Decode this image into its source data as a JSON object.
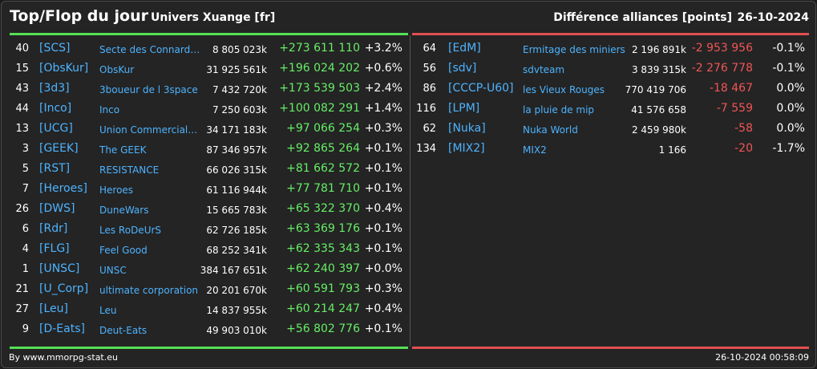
{
  "header": {
    "title": "Top/Flop du jour",
    "universe": "Univers Xuange [fr]",
    "subtitle": "Différence alliances [points]",
    "date": "26-10-2024"
  },
  "colors": {
    "up": "#66ee66",
    "down": "#f05555",
    "tag": "#4db3ff"
  },
  "top": [
    {
      "rank": "40",
      "tag": "[SCS]",
      "name": "Secte des Connard…",
      "points": "8 805 023k",
      "diff": "+273 611 110",
      "pct": "+3.2%"
    },
    {
      "rank": "15",
      "tag": "[ObsKur]",
      "name": "ObsKur",
      "points": "31 925 561k",
      "diff": "+196 024 202",
      "pct": "+0.6%"
    },
    {
      "rank": "43",
      "tag": "[3d3]",
      "name": "3boueur de l 3space",
      "points": "7 432 720k",
      "diff": "+173 539 503",
      "pct": "+2.4%"
    },
    {
      "rank": "44",
      "tag": "[Inco]",
      "name": "Inco",
      "points": "7 250 603k",
      "diff": "+100 082 291",
      "pct": "+1.4%"
    },
    {
      "rank": "13",
      "tag": "[UCG]",
      "name": "Union Commerciale…",
      "points": "34 171 183k",
      "diff": "+97 066 254",
      "pct": "+0.3%"
    },
    {
      "rank": "3",
      "tag": "[GEEK]",
      "name": "The GEEK",
      "points": "87 346 957k",
      "diff": "+92 865 264",
      "pct": "+0.1%"
    },
    {
      "rank": "5",
      "tag": "[RST]",
      "name": "RESISTANCE",
      "points": "66 026 315k",
      "diff": "+81 662 572",
      "pct": "+0.1%"
    },
    {
      "rank": "7",
      "tag": "[Heroes]",
      "name": "Heroes",
      "points": "61 116 944k",
      "diff": "+77 781 710",
      "pct": "+0.1%"
    },
    {
      "rank": "26",
      "tag": "[DWS]",
      "name": "DuneWars",
      "points": "15 665 783k",
      "diff": "+65 322 370",
      "pct": "+0.4%"
    },
    {
      "rank": "6",
      "tag": "[Rdr]",
      "name": "Les RoDeUrS",
      "points": "62 726 185k",
      "diff": "+63 369 176",
      "pct": "+0.1%"
    },
    {
      "rank": "4",
      "tag": "[FLG]",
      "name": "Feel Good",
      "points": "68 252 341k",
      "diff": "+62 335 343",
      "pct": "+0.1%"
    },
    {
      "rank": "1",
      "tag": "[UNSC]",
      "name": "UNSC",
      "points": "384 167 651k",
      "diff": "+62 240 397",
      "pct": "+0.0%"
    },
    {
      "rank": "21",
      "tag": "[U_Corp]",
      "name": "ultimate corporation",
      "points": "20 201 670k",
      "diff": "+60 591 793",
      "pct": "+0.3%"
    },
    {
      "rank": "27",
      "tag": "[Leu]",
      "name": "Leu",
      "points": "14 837 955k",
      "diff": "+60 214 247",
      "pct": "+0.4%"
    },
    {
      "rank": "9",
      "tag": "[D-Eats]",
      "name": "Deut-Eats",
      "points": "49 903 010k",
      "diff": "+56 802 776",
      "pct": "+0.1%"
    }
  ],
  "flop": [
    {
      "rank": "64",
      "tag": "[EdM]",
      "name": "Ermitage des miniers",
      "points": "2 196 891k",
      "diff": "-2 953 956",
      "pct": "-0.1%"
    },
    {
      "rank": "56",
      "tag": "[sdv]",
      "name": "sdvteam",
      "points": "3 839 315k",
      "diff": "-2 276 778",
      "pct": "-0.1%"
    },
    {
      "rank": "86",
      "tag": "[CCCP-U60]",
      "name": "les Vieux Rouges",
      "points": "770 419 706",
      "diff": "-18 467",
      "pct": "0.0%"
    },
    {
      "rank": "116",
      "tag": "[LPM]",
      "name": "la pluie de mip",
      "points": "41 576 658",
      "diff": "-7 559",
      "pct": "0.0%"
    },
    {
      "rank": "62",
      "tag": "[Nuka]",
      "name": "Nuka World",
      "points": "2 459 980k",
      "diff": "-58",
      "pct": "0.0%"
    },
    {
      "rank": "134",
      "tag": "[MIX2]",
      "name": "MIX2",
      "points": "1 166",
      "diff": "-20",
      "pct": "-1.7%"
    }
  ],
  "footer": {
    "source": "By www.mmorpg-stat.eu",
    "timestamp": "26-10-2024 00:58:09"
  }
}
